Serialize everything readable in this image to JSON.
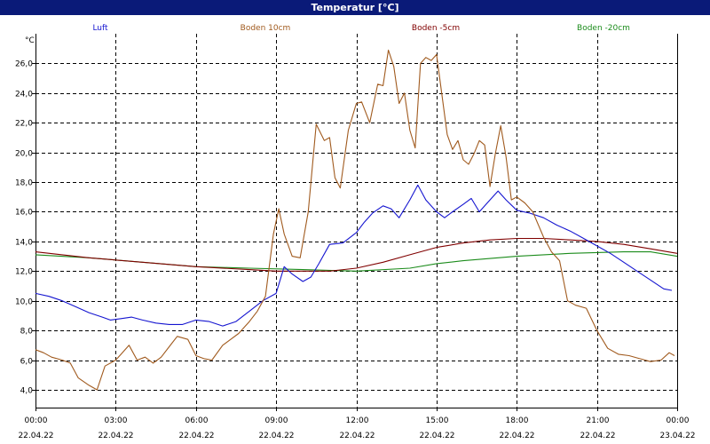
{
  "chart_data": {
    "type": "line",
    "title": "Temperatur [°C]",
    "ylabel": "°C",
    "ylim": [
      2.8,
      28.0
    ],
    "yticks": [
      4.0,
      6.0,
      8.0,
      10.0,
      12.0,
      14.0,
      16.0,
      18.0,
      20.0,
      22.0,
      24.0,
      26.0
    ],
    "ytick_labels": [
      "4,0",
      "6,0",
      "8,0",
      "10,0",
      "12,0",
      "14,0",
      "16,0",
      "18,0",
      "20,0",
      "22,0",
      "24,0",
      "26,0"
    ],
    "xlim": [
      0,
      24
    ],
    "xticks": [
      0,
      3,
      6,
      9,
      12,
      15,
      18,
      21,
      24
    ],
    "xtick_times": [
      "00:00",
      "03:00",
      "06:00",
      "09:00",
      "12:00",
      "15:00",
      "18:00",
      "21:00",
      "00:00"
    ],
    "xtick_dates": [
      "22.04.22",
      "22.04.22",
      "22.04.22",
      "22.04.22",
      "22.04.22",
      "22.04.22",
      "22.04.22",
      "22.04.22",
      "23.04.22"
    ],
    "grid": true,
    "legend_position": "top",
    "series": [
      {
        "name": "Luft",
        "color": "#1515d0",
        "x": [
          0,
          0.5,
          1,
          1.5,
          2,
          2.5,
          2.8,
          3.2,
          3.6,
          4,
          4.5,
          5,
          5.5,
          6,
          6.5,
          7,
          7.5,
          8,
          8.5,
          9,
          9.3,
          9.6,
          10,
          10.3,
          10.6,
          11,
          11.5,
          12,
          12.3,
          12.6,
          13,
          13.3,
          13.6,
          14,
          14.3,
          14.6,
          15,
          15.3,
          15.6,
          16,
          16.3,
          16.6,
          17,
          17.3,
          17.6,
          18,
          18.5,
          19,
          19.5,
          20,
          20.5,
          21,
          21.5,
          22,
          22.5,
          23,
          23.5,
          23.8
        ],
        "y": [
          10.5,
          10.3,
          10.0,
          9.6,
          9.2,
          8.9,
          8.7,
          8.8,
          8.9,
          8.7,
          8.5,
          8.4,
          8.4,
          8.7,
          8.6,
          8.3,
          8.6,
          9.3,
          10.0,
          10.5,
          12.3,
          11.8,
          11.3,
          11.6,
          12.5,
          13.8,
          13.9,
          14.6,
          15.3,
          15.9,
          16.4,
          16.2,
          15.6,
          16.8,
          17.8,
          16.8,
          16.0,
          15.6,
          16.0,
          16.5,
          16.9,
          16.0,
          16.8,
          17.4,
          16.8,
          16.1,
          15.9,
          15.6,
          15.1,
          14.7,
          14.2,
          13.7,
          13.2,
          12.6,
          12.0,
          11.4,
          10.8,
          10.7
        ]
      },
      {
        "name": "Boden 10cm",
        "color": "#a05a1e",
        "x": [
          0,
          0.3,
          0.6,
          1,
          1.3,
          1.6,
          2,
          2.3,
          2.6,
          3,
          3.2,
          3.5,
          3.8,
          4.1,
          4.4,
          4.7,
          5,
          5.3,
          5.7,
          6,
          6.3,
          6.6,
          7,
          7.3,
          7.6,
          8,
          8.3,
          8.6,
          8.9,
          9.1,
          9.3,
          9.6,
          9.9,
          10.2,
          10.5,
          10.8,
          11,
          11.2,
          11.4,
          11.7,
          12,
          12.2,
          12.5,
          12.8,
          13,
          13.2,
          13.4,
          13.6,
          13.8,
          14,
          14.2,
          14.4,
          14.6,
          14.8,
          15,
          15.2,
          15.4,
          15.6,
          15.8,
          16,
          16.2,
          16.4,
          16.6,
          16.8,
          17,
          17.2,
          17.4,
          17.6,
          17.8,
          18,
          18.3,
          18.6,
          19,
          19.3,
          19.6,
          19.9,
          20.2,
          20.6,
          21,
          21.4,
          21.8,
          22.2,
          22.6,
          23,
          23.4,
          23.7,
          23.9
        ],
        "y": [
          6.7,
          6.5,
          6.2,
          6.0,
          5.8,
          4.8,
          4.3,
          4.0,
          5.6,
          6.0,
          6.4,
          7.0,
          6.0,
          6.2,
          5.8,
          6.2,
          6.9,
          7.6,
          7.4,
          6.3,
          6.1,
          6.0,
          7.0,
          7.4,
          7.8,
          8.6,
          9.3,
          10.3,
          14.5,
          16.2,
          14.5,
          13.0,
          12.9,
          16.0,
          21.9,
          20.8,
          21.0,
          18.3,
          17.6,
          21.5,
          23.3,
          23.4,
          22.0,
          24.6,
          24.5,
          26.9,
          25.8,
          23.3,
          24.0,
          21.5,
          20.3,
          26.0,
          26.4,
          26.2,
          26.6,
          23.9,
          21.2,
          20.2,
          20.8,
          19.5,
          19.2,
          19.9,
          20.8,
          20.5,
          17.7,
          19.9,
          21.8,
          19.7,
          16.8,
          17.0,
          16.6,
          16.0,
          14.3,
          13.3,
          12.7,
          10.0,
          9.7,
          9.5,
          8.0,
          6.8,
          6.4,
          6.3,
          6.1,
          5.9,
          6.0,
          6.5,
          6.3
        ]
      },
      {
        "name": "Boden -5cm",
        "color": "#800000",
        "x": [
          0,
          2,
          4,
          6,
          8,
          9,
          10,
          11,
          12,
          13,
          14,
          15,
          16,
          17,
          18,
          19,
          20,
          21,
          22,
          23,
          24
        ],
        "y": [
          13.3,
          12.9,
          12.6,
          12.3,
          12.1,
          12.0,
          12.0,
          12.0,
          12.2,
          12.6,
          13.1,
          13.6,
          13.9,
          14.1,
          14.2,
          14.2,
          14.1,
          14.0,
          13.8,
          13.5,
          13.2
        ]
      },
      {
        "name": "Boden -20cm",
        "color": "#1c8c1c",
        "x": [
          0,
          2,
          4,
          6,
          8,
          10,
          12,
          14,
          15,
          16,
          18,
          20,
          22,
          23,
          24
        ],
        "y": [
          13.1,
          12.9,
          12.6,
          12.3,
          12.2,
          12.1,
          12.0,
          12.2,
          12.5,
          12.7,
          13.0,
          13.2,
          13.3,
          13.3,
          13.0
        ]
      }
    ]
  }
}
